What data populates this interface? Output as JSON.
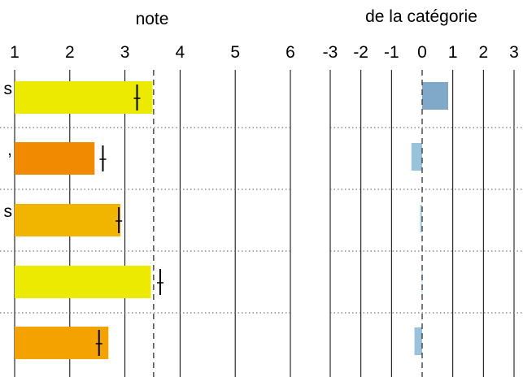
{
  "chart_data": [
    {
      "type": "bar",
      "orientation": "horizontal",
      "title": "note",
      "xlim": [
        1,
        6
      ],
      "ticks": [
        1,
        2,
        3,
        4,
        5,
        6
      ],
      "tick_labels": [
        "1",
        "2",
        "3",
        "4",
        "5",
        "6"
      ],
      "reference_line": 3.52,
      "row_label_fragments": [
        "s",
        ",",
        "s",
        "",
        ""
      ],
      "values": [
        3.5,
        2.45,
        2.92,
        3.47,
        2.7
      ],
      "markers": [
        3.22,
        2.6,
        2.89,
        3.64,
        2.53
      ],
      "colors": [
        "#ecea00",
        "#f28a00",
        "#f1b500",
        "#ecea00",
        "#f4a200"
      ],
      "grid": true
    },
    {
      "type": "bar",
      "orientation": "horizontal",
      "title_line1": "",
      "title_line2": "de la catégorie",
      "xlim": [
        -3,
        3
      ],
      "ticks": [
        -3,
        -2,
        -1,
        0,
        1,
        2,
        3
      ],
      "tick_labels": [
        "-3",
        "-2",
        "-1",
        "0",
        "1",
        "2",
        "3"
      ],
      "reference_line": 0,
      "values": [
        0.85,
        -0.35,
        -0.07,
        -0.02,
        -0.25
      ],
      "colors": [
        "#7fa8c9",
        "#99c2dd",
        "#b3d3e6",
        "#d3e6f1",
        "#99c2dd"
      ],
      "grid": true
    }
  ]
}
